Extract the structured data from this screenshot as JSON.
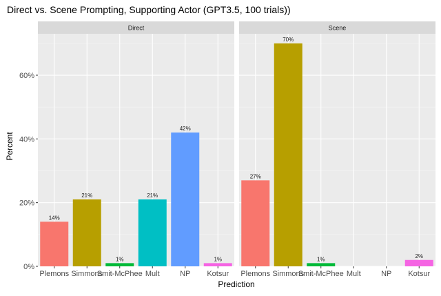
{
  "chart_data": {
    "type": "bar",
    "title": "Direct vs. Scene Prompting, Supporting Actor (GPT3.5, 100 trials))",
    "xlabel": "Prediction",
    "ylabel": "Percent",
    "ylim": [
      0,
      73
    ],
    "yticks": [
      0,
      20,
      40,
      60
    ],
    "ytick_labels": [
      "0%",
      "20%",
      "40%",
      "60%"
    ],
    "categories": [
      "Plemons",
      "Simmons",
      "Smit-McPhee",
      "Mult",
      "NP",
      "Kotsur"
    ],
    "colors": [
      "#F8766D",
      "#B79F00",
      "#00BA38",
      "#00BFC4",
      "#619CFF",
      "#F564E3"
    ],
    "grid": true,
    "legend": "none",
    "panels": [
      {
        "name": "Direct",
        "values": [
          14,
          21,
          1,
          21,
          42,
          1
        ],
        "labels": [
          "14%",
          "21%",
          "1%",
          "21%",
          "42%",
          "1%"
        ]
      },
      {
        "name": "Scene",
        "values": [
          27,
          70,
          1,
          null,
          null,
          2
        ],
        "labels": [
          "27%",
          "70%",
          "1%",
          "",
          "",
          "2%"
        ]
      }
    ]
  }
}
